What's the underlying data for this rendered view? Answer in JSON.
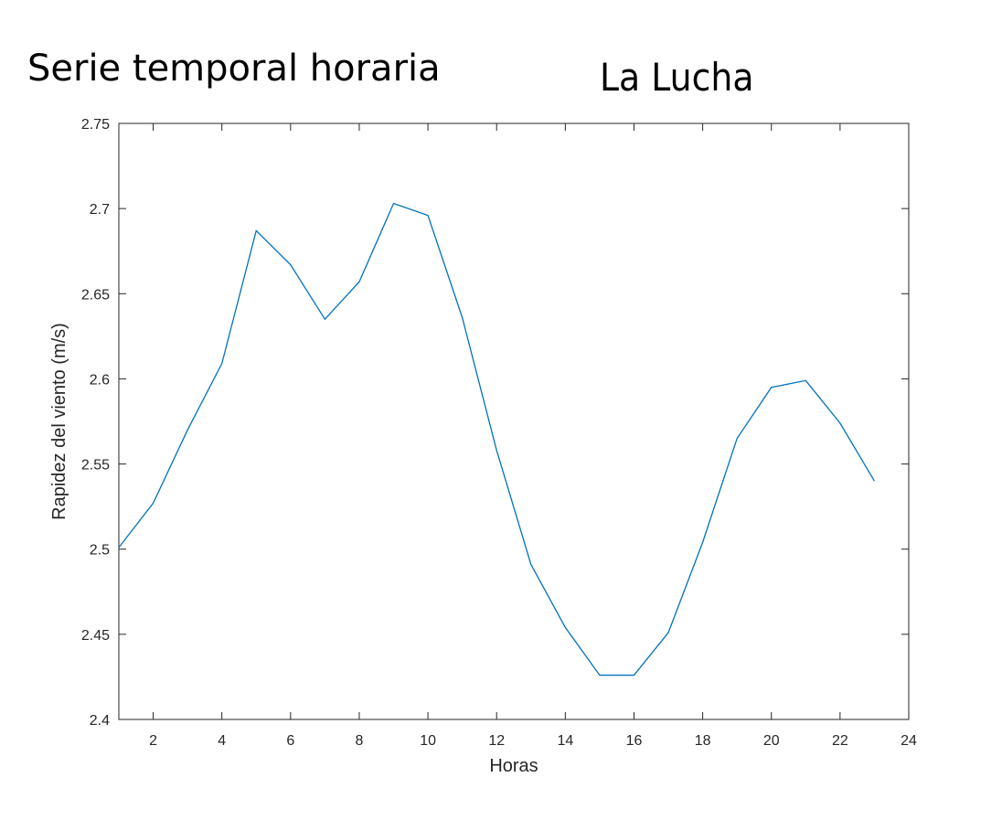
{
  "header": {
    "title_left": "Serie temporal horaria",
    "title_right": "La Lucha"
  },
  "chart_data": {
    "type": "line",
    "title": "",
    "xlabel": "Horas",
    "ylabel": "Rapidez del viento (m/s)",
    "xlim": [
      1,
      24
    ],
    "ylim": [
      2.4,
      2.75
    ],
    "x_ticks": [
      2,
      4,
      6,
      8,
      10,
      12,
      14,
      16,
      18,
      20,
      22,
      24
    ],
    "y_ticks": [
      2.4,
      2.45,
      2.5,
      2.55,
      2.6,
      2.65,
      2.7,
      2.75
    ],
    "y_tick_labels": [
      "2.4",
      "2.45",
      "2.5",
      "2.55",
      "2.6",
      "2.65",
      "2.7",
      "2.75"
    ],
    "grid": false,
    "series": [
      {
        "color": "#0072BD",
        "x": [
          1,
          2,
          3,
          4,
          5,
          6,
          7,
          8,
          9,
          10,
          11,
          12,
          13,
          14,
          15,
          16,
          17,
          18,
          19,
          20,
          21,
          22,
          23
        ],
        "values": [
          2.501,
          2.527,
          2.57,
          2.609,
          2.687,
          2.667,
          2.635,
          2.657,
          2.703,
          2.696,
          2.636,
          2.558,
          2.491,
          2.454,
          2.426,
          2.426,
          2.451,
          2.504,
          2.565,
          2.595,
          2.599,
          2.574,
          2.54
        ]
      }
    ]
  }
}
